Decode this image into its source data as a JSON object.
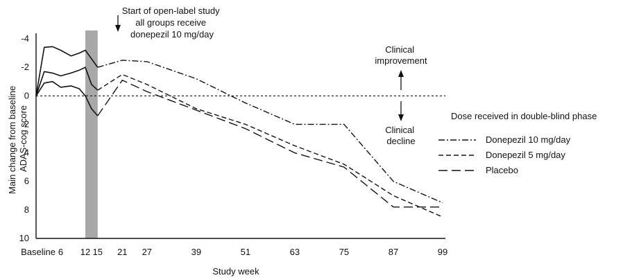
{
  "chart_data": {
    "type": "line",
    "xlabel": "Study week",
    "ylabel_lines": [
      "Main change from baseline",
      "ADAS-cog score"
    ],
    "x_ticks": [
      {
        "value": 0,
        "label": "Baseline"
      },
      {
        "value": 6,
        "label": "6"
      },
      {
        "value": 12,
        "label": "12"
      },
      {
        "value": 15,
        "label": "15"
      },
      {
        "value": 21,
        "label": "21"
      },
      {
        "value": 27,
        "label": "27"
      },
      {
        "value": 39,
        "label": "39"
      },
      {
        "value": 51,
        "label": "51"
      },
      {
        "value": 63,
        "label": "63"
      },
      {
        "value": 75,
        "label": "75"
      },
      {
        "value": 87,
        "label": "87"
      },
      {
        "value": 99,
        "label": "99"
      }
    ],
    "y_ticks": [
      {
        "value": -4,
        "label": "-4"
      },
      {
        "value": -2,
        "label": "-2"
      },
      {
        "value": 0,
        "label": "0"
      },
      {
        "value": 2,
        "label": "2"
      },
      {
        "value": 4,
        "label": "4"
      },
      {
        "value": 6,
        "label": "6"
      },
      {
        "value": 8,
        "label": "8"
      },
      {
        "value": 10,
        "label": "10"
      }
    ],
    "xlim": [
      0,
      99
    ],
    "ylim": [
      -4,
      10
    ],
    "y_inverted": true,
    "reference_line": {
      "y": 0,
      "style": "dotted"
    },
    "shaded_band": {
      "x0": 12,
      "x1": 15,
      "color": "#a8a8a8"
    },
    "double_blind_curves": [
      {
        "x": [
          0,
          2,
          4,
          6,
          8.5,
          10.5,
          12,
          13.5,
          15
        ],
        "y": [
          0,
          -3.4,
          -3.45,
          -3.2,
          -2.8,
          -3.0,
          -3.2,
          -2.6,
          -2.0
        ]
      },
      {
        "x": [
          0,
          2,
          4,
          6,
          8.5,
          10.5,
          12,
          13.5,
          15
        ],
        "y": [
          0,
          -1.7,
          -1.6,
          -1.4,
          -1.6,
          -1.8,
          -2.0,
          -0.8,
          -0.4
        ]
      },
      {
        "x": [
          0,
          2,
          4,
          6,
          8.5,
          10.5,
          12,
          13.5,
          15
        ],
        "y": [
          0,
          -0.9,
          -1.0,
          -0.6,
          -0.7,
          -0.5,
          0.0,
          0.9,
          1.4
        ]
      }
    ],
    "series": [
      {
        "name": "Donepezil 10 mg/day",
        "style": "dashdot",
        "x": [
          15,
          21,
          27,
          39,
          51,
          63,
          75,
          87,
          99
        ],
        "y": [
          -2.0,
          -2.5,
          -2.4,
          -1.2,
          0.5,
          2.0,
          2.0,
          6.0,
          7.5
        ]
      },
      {
        "name": "Donepezil 5 mg/day",
        "style": "shortdash",
        "x": [
          15,
          21,
          27,
          39,
          51,
          63,
          75,
          87,
          99
        ],
        "y": [
          -0.4,
          -1.5,
          -0.8,
          0.9,
          2.0,
          3.5,
          4.8,
          7.0,
          8.5
        ]
      },
      {
        "name": "Placebo",
        "style": "longdash",
        "x": [
          15,
          21,
          27,
          39,
          51,
          63,
          75,
          87,
          99
        ],
        "y": [
          1.4,
          -1.1,
          -0.3,
          1.0,
          2.3,
          4.0,
          5.0,
          7.8,
          7.8
        ]
      }
    ],
    "legend_title": "Dose received in double-blind phase",
    "legend_placement": "right",
    "annotations": {
      "open_label": [
        "Start of open-label study",
        "all groups receive",
        "donepezil 10 mg/day"
      ],
      "improvement": [
        "Clinical",
        "improvement"
      ],
      "decline": [
        "Clinical",
        "decline"
      ]
    },
    "colors": {
      "line": "#111111",
      "band": "#a8a8a8",
      "background": "#ffffff"
    }
  }
}
